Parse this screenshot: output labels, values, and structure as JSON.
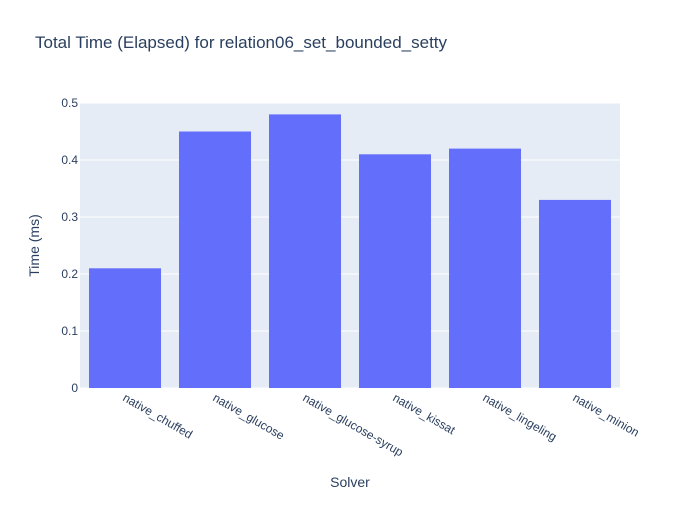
{
  "chart_data": {
    "type": "bar",
    "title": "Total Time (Elapsed) for relation06_set_bounded_setty",
    "xlabel": "Solver",
    "ylabel": "Time (ms)",
    "categories": [
      "native_chuffed",
      "native_glucose",
      "native_glucose-syrup",
      "native_kissat",
      "native_lingeling",
      "native_minion"
    ],
    "values": [
      0.21,
      0.45,
      0.48,
      0.41,
      0.42,
      0.33
    ],
    "ylim": [
      0,
      0.5
    ],
    "yticks": [
      0,
      0.1,
      0.2,
      0.3,
      0.4,
      0.5
    ],
    "ytick_labels": [
      "0",
      "0.1",
      "0.2",
      "0.3",
      "0.4",
      "0.5"
    ],
    "grid": true,
    "legend": false,
    "colors": {
      "bar": "#636efa",
      "plot_background": "#e5ecf6",
      "grid": "#ffffff",
      "text": "#2a3f5f"
    }
  }
}
